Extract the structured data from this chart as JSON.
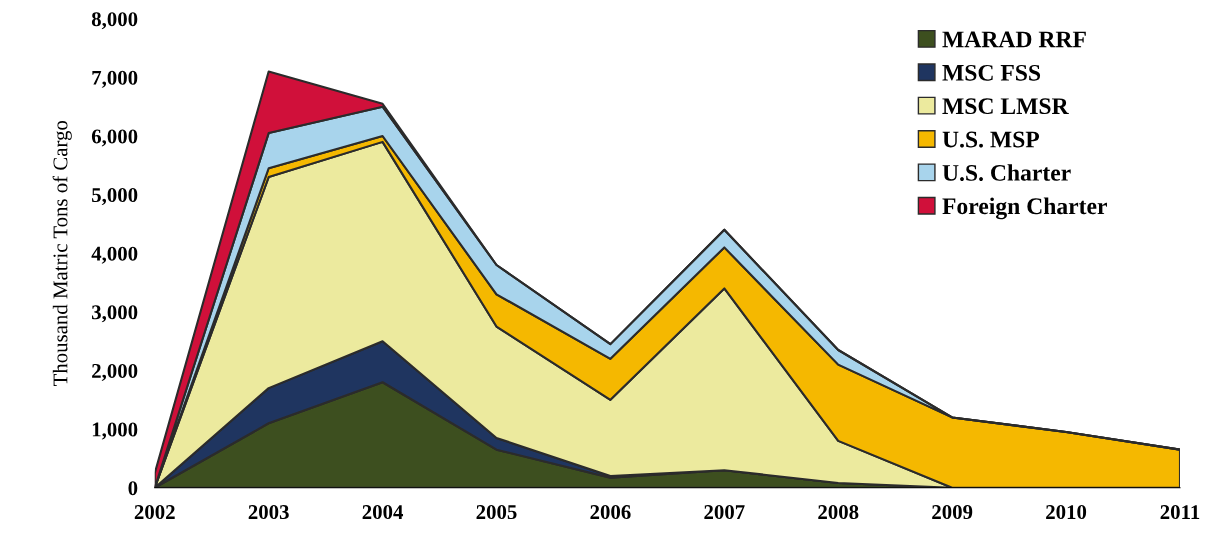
{
  "chart_data": {
    "type": "area",
    "stacked": true,
    "ylabel": "Thousand Matric Tons of Cargo",
    "categories": [
      "2002",
      "2003",
      "2004",
      "2005",
      "2006",
      "2007",
      "2008",
      "2009",
      "2010",
      "2011"
    ],
    "series": [
      {
        "name": "MARAD RRF",
        "color": "#3d4f1f",
        "values": [
          0,
          1100,
          1800,
          650,
          170,
          300,
          80,
          0,
          0,
          0
        ]
      },
      {
        "name": "MSC FSS",
        "color": "#1f3560",
        "values": [
          0,
          600,
          700,
          200,
          30,
          0,
          0,
          0,
          0,
          0
        ]
      },
      {
        "name": "MSC LMSR",
        "color": "#ecea9e",
        "values": [
          0,
          3600,
          3400,
          1900,
          1300,
          3100,
          720,
          0,
          0,
          0
        ]
      },
      {
        "name": "U.S. MSP",
        "color": "#f5b800",
        "values": [
          0,
          150,
          100,
          550,
          700,
          700,
          1300,
          1200,
          950,
          650
        ]
      },
      {
        "name": "U.S. Charter",
        "color": "#a8d4ec",
        "values": [
          0,
          600,
          500,
          500,
          250,
          300,
          250,
          0,
          0,
          0
        ]
      },
      {
        "name": "Foreign Charter",
        "color": "#d0103a",
        "values": [
          250,
          1050,
          50,
          0,
          0,
          0,
          0,
          0,
          0,
          0
        ]
      }
    ],
    "ylim": [
      0,
      8000
    ],
    "yticks": [
      {
        "value": 0,
        "label": "0"
      },
      {
        "value": 1000,
        "label": "1,000"
      },
      {
        "value": 2000,
        "label": "2,000"
      },
      {
        "value": 3000,
        "label": "3,000"
      },
      {
        "value": 4000,
        "label": "4,000"
      },
      {
        "value": 5000,
        "label": "5,000"
      },
      {
        "value": 6000,
        "label": "6,000"
      },
      {
        "value": 7000,
        "label": "7,000"
      },
      {
        "value": 8000,
        "label": "8,000"
      }
    ],
    "legend": "top right"
  }
}
